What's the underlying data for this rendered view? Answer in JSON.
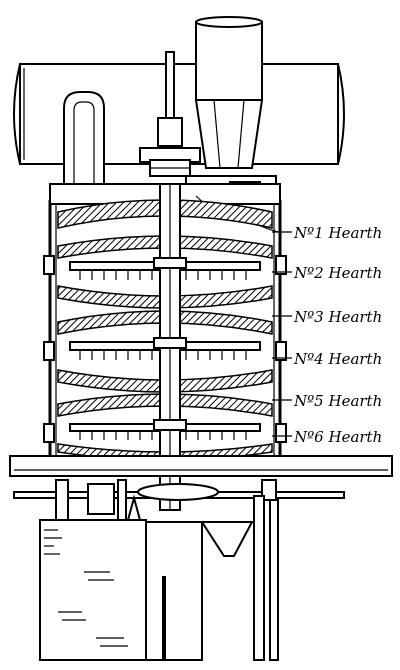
{
  "hearth_labels": [
    {
      "id": "hearth-1",
      "text": "Nº1 Hearth"
    },
    {
      "id": "hearth-2",
      "text": "Nº2 Hearth"
    },
    {
      "id": "hearth-3",
      "text": "Nº3 Hearth"
    },
    {
      "id": "hearth-4",
      "text": "Nº4 Hearth"
    },
    {
      "id": "hearth-5",
      "text": "Nº5 Hearth"
    },
    {
      "id": "hearth-6",
      "text": "Nº6 Hearth"
    }
  ]
}
